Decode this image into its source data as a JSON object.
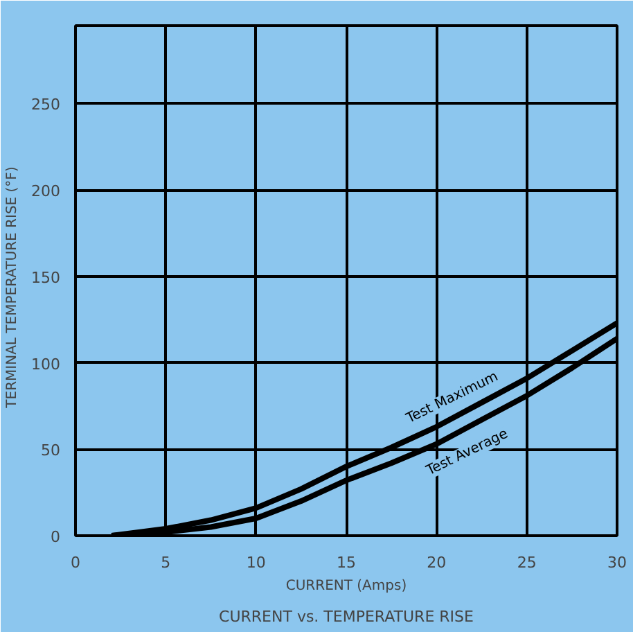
{
  "chart_data": {
    "type": "line",
    "title": "CURRENT vs. TEMPERATURE RISE",
    "xlabel": "CURRENT (Amps)",
    "ylabel": "TERMINAL  TEMPERATURE  RISE  (°F)",
    "xlim": [
      0,
      30
    ],
    "ylim": [
      0,
      295
    ],
    "xticks": [
      0,
      5,
      10,
      15,
      20,
      25,
      30
    ],
    "yticks": [
      0,
      50,
      100,
      150,
      200,
      250
    ],
    "grid": true,
    "marker": "none",
    "line_style": "solid",
    "series": [
      {
        "name": "Test Maximum",
        "color": "#000000",
        "x": [
          2,
          5,
          7.5,
          10,
          12.5,
          15,
          17.5,
          20,
          22.5,
          25,
          27.5,
          30
        ],
        "values": [
          0,
          4,
          9,
          16,
          27,
          40,
          51,
          63,
          77,
          91,
          107,
          123
        ]
      },
      {
        "name": "Test Average",
        "color": "#000000",
        "x": [
          2,
          5,
          7.5,
          10,
          12.5,
          15,
          17.5,
          20,
          22.5,
          25,
          27.5,
          30
        ],
        "values": [
          0,
          2,
          5,
          10,
          20,
          32,
          42,
          53,
          67,
          81,
          97,
          114
        ]
      }
    ]
  }
}
